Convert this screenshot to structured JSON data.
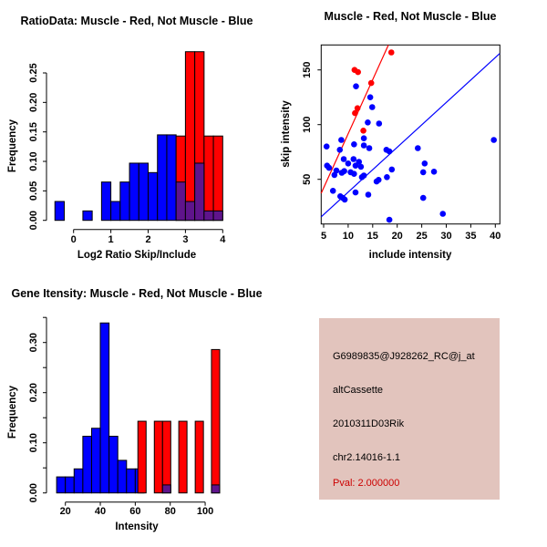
{
  "window": {
    "background": "#FFFFFF"
  },
  "colors": {
    "muscle_red": "#FF0000",
    "not_muscle_blue": "#0000FF",
    "overlap_purple": "#5F148C",
    "info_background": "#E2C4BD",
    "pval_red": "#CC0000",
    "axis_black": "#000000"
  },
  "chart_data": [
    {
      "id": "ratio_hist",
      "type": "bar",
      "title": "RatioData: Muscle - Red, Not Muscle - Blue",
      "xlabel": "Log2 Ratio Skip/Include",
      "ylabel": "Frequency",
      "xlim": [
        -0.62,
        4.06
      ],
      "ylim": [
        0,
        0.29
      ],
      "x_ticks": [
        0,
        1,
        2,
        3,
        4
      ],
      "y_ticks": [
        0,
        0.05,
        0.1,
        0.15,
        0.2,
        0.25
      ],
      "y_tick_labels": [
        "0.00",
        "0.05",
        "0.10",
        "0.15",
        "0.20",
        "0.25"
      ],
      "y_minor_ticks": [],
      "bin_width": 0.25,
      "series": [
        {
          "name": "not-muscle-blue",
          "color": "#0000FF",
          "bars": [
            [
              -0.5,
              0.032
            ],
            [
              0.25,
              0.016
            ],
            [
              0.75,
              0.065
            ],
            [
              1.0,
              0.032
            ],
            [
              1.25,
              0.065
            ],
            [
              1.5,
              0.097
            ],
            [
              1.75,
              0.097
            ],
            [
              2.0,
              0.081
            ],
            [
              2.25,
              0.145
            ],
            [
              2.5,
              0.145
            ]
          ]
        },
        {
          "name": "muscle-red",
          "color": "#FF0000",
          "bars": [
            [
              2.75,
              0.143
            ],
            [
              3.0,
              0.286
            ],
            [
              3.25,
              0.286
            ],
            [
              3.5,
              0.143
            ],
            [
              3.75,
              0.143
            ]
          ]
        },
        {
          "name": "overlap-purple",
          "color": "#5F148C",
          "bars": [
            [
              2.75,
              0.065
            ],
            [
              3.0,
              0.032
            ],
            [
              3.25,
              0.097
            ],
            [
              3.5,
              0.016
            ],
            [
              3.75,
              0.016
            ]
          ]
        }
      ]
    },
    {
      "id": "scatter",
      "type": "scatter",
      "title": "Muscle - Red, Not Muscle - Blue",
      "xlabel": "include intensity",
      "ylabel": "skip intensity",
      "xlim": [
        4.5,
        41
      ],
      "ylim": [
        9,
        173
      ],
      "x_ticks": [
        5,
        10,
        15,
        20,
        25,
        30,
        35,
        40
      ],
      "y_ticks": [
        50,
        100,
        150
      ],
      "series": [
        {
          "name": "not-muscle-points",
          "color": "#0000FF",
          "points": [
            [
              11.6,
              135
            ],
            [
              14.5,
              125
            ],
            [
              14.9,
              116
            ],
            [
              14,
              102
            ],
            [
              16.3,
              101
            ],
            [
              13.2,
              87.5
            ],
            [
              8.6,
              86
            ],
            [
              5.6,
              80
            ],
            [
              8.3,
              77
            ],
            [
              11.2,
              82
            ],
            [
              13.2,
              81
            ],
            [
              14.3,
              78.5
            ],
            [
              17.8,
              77
            ],
            [
              18.4,
              75.5
            ],
            [
              9.1,
              68.5
            ],
            [
              11.1,
              68.5
            ],
            [
              10,
              64.5
            ],
            [
              12.2,
              66
            ],
            [
              11.5,
              62.5
            ],
            [
              12.6,
              61.5
            ],
            [
              5.7,
              62.5
            ],
            [
              6.1,
              60.5
            ],
            [
              7.6,
              58
            ],
            [
              7.2,
              54
            ],
            [
              8.7,
              56
            ],
            [
              9.2,
              57.5
            ],
            [
              10.5,
              56.5
            ],
            [
              11.2,
              55
            ],
            [
              13.2,
              53.5
            ],
            [
              12.8,
              52
            ],
            [
              17.9,
              52
            ],
            [
              16.2,
              49.5
            ],
            [
              15.8,
              48
            ],
            [
              6.9,
              39.5
            ],
            [
              8.4,
              34.5
            ],
            [
              8.9,
              33
            ],
            [
              9.3,
              31.5
            ],
            [
              11.5,
              38
            ],
            [
              14.1,
              36
            ],
            [
              18.4,
              13
            ],
            [
              18.9,
              59
            ],
            [
              24.2,
              78.5
            ],
            [
              25.6,
              64.5
            ],
            [
              25.3,
              56.5
            ],
            [
              27.5,
              57
            ],
            [
              25.3,
              33
            ],
            [
              29.3,
              18.5
            ],
            [
              39.7,
              86
            ]
          ]
        },
        {
          "name": "muscle-points",
          "color": "#FF0000",
          "points": [
            [
              11.3,
              150
            ],
            [
              12,
              148
            ],
            [
              18.8,
              166
            ],
            [
              14.7,
              138
            ],
            [
              11.9,
              115
            ],
            [
              11.4,
              110.5
            ],
            [
              13.1,
              94.5
            ]
          ]
        }
      ],
      "lines": [
        {
          "name": "muscle-fit-line",
          "color": "#FF0000",
          "points": [
            [
              4.5,
              37.2
            ],
            [
              18.2,
              172.8
            ]
          ]
        },
        {
          "name": "not-muscle-fit-line",
          "color": "#0000FF",
          "points": [
            [
              4.5,
              15.7
            ],
            [
              40.9,
              165
            ]
          ]
        }
      ]
    },
    {
      "id": "intensity_hist",
      "type": "bar",
      "title": "Gene Itensity: Muscle - Red, Not Muscle - Blue",
      "xlabel": "Intensity",
      "ylabel": "Frequency",
      "xlim": [
        12,
        112
      ],
      "ylim": [
        0,
        0.35
      ],
      "x_ticks": [
        20,
        40,
        60,
        80,
        100
      ],
      "y_ticks": [
        0,
        0.1,
        0.2,
        0.3
      ],
      "y_tick_labels": [
        "0.00",
        "0.10",
        "0.20",
        "0.30"
      ],
      "y_minor_ticks": [
        0.05,
        0.15,
        0.25,
        0.35
      ],
      "bin_width": 5,
      "series": [
        {
          "name": "not-muscle-blue",
          "color": "#0000FF",
          "bars": [
            [
              15,
              0.032
            ],
            [
              20,
              0.032
            ],
            [
              25,
              0.048
            ],
            [
              30,
              0.113
            ],
            [
              35,
              0.129
            ],
            [
              40,
              0.339
            ],
            [
              45,
              0.113
            ],
            [
              50,
              0.065
            ],
            [
              55,
              0.048
            ],
            [
              60,
              0.048
            ]
          ]
        },
        {
          "name": "muscle-red",
          "color": "#FF0000",
          "bar_width": 4.7,
          "bars": [
            [
              61.5,
              0.143
            ],
            [
              70.9,
              0.143
            ],
            [
              75.6,
              0.143
            ],
            [
              84.9,
              0.143
            ],
            [
              94.3,
              0.143
            ],
            [
              103.6,
              0.286
            ]
          ]
        },
        {
          "name": "overlap-purple",
          "color": "#5F148C",
          "bar_width": 4.7,
          "bars": [
            [
              75.6,
              0.016
            ],
            [
              103.6,
              0.016
            ]
          ]
        }
      ]
    }
  ],
  "info_panel": {
    "probe_id": "G6989835@J928262_RC@j_at",
    "splice_type": "altCassette",
    "gene_name": "2010311D03Rik",
    "location": "chr2.14016-1.1",
    "pval": "Pval: 2.000000"
  }
}
